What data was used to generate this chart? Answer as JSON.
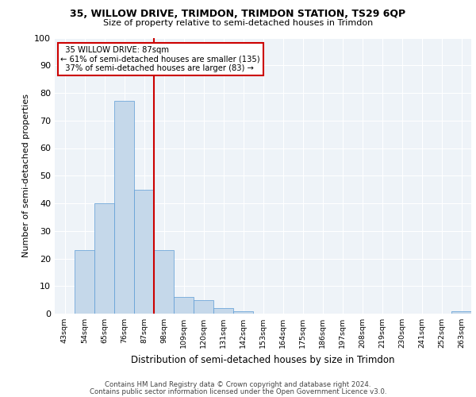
{
  "title": "35, WILLOW DRIVE, TRIMDON, TRIMDON STATION, TS29 6QP",
  "subtitle": "Size of property relative to semi-detached houses in Trimdon",
  "xlabel": "Distribution of semi-detached houses by size in Trimdon",
  "ylabel": "Number of semi-detached properties",
  "bins": [
    43,
    54,
    65,
    76,
    87,
    98,
    109,
    120,
    131,
    142,
    153,
    164,
    175,
    186,
    197,
    208,
    219,
    230,
    241,
    252,
    263
  ],
  "counts": [
    0,
    23,
    40,
    77,
    45,
    23,
    6,
    5,
    2,
    1,
    0,
    0,
    0,
    0,
    0,
    0,
    0,
    0,
    0,
    0,
    1
  ],
  "property_size": 87,
  "property_label": "35 WILLOW DRIVE: 87sqm",
  "pct_smaller": 61,
  "n_smaller": 135,
  "pct_larger": 37,
  "n_larger": 83,
  "bar_color": "#c5d8ea",
  "bar_edge_color": "#5b9bd5",
  "vline_color": "#cc0000",
  "annotation_box_edge": "#cc0000",
  "background_color": "#eef3f8",
  "grid_color": "#ffffff",
  "ylim": [
    0,
    100
  ],
  "tick_labels": [
    "43sqm",
    "54sqm",
    "65sqm",
    "76sqm",
    "87sqm",
    "98sqm",
    "109sqm",
    "120sqm",
    "131sqm",
    "142sqm",
    "153sqm",
    "164sqm",
    "175sqm",
    "186sqm",
    "197sqm",
    "208sqm",
    "219sqm",
    "230sqm",
    "241sqm",
    "252sqm",
    "263sqm"
  ],
  "footer1": "Contains HM Land Registry data © Crown copyright and database right 2024.",
  "footer2": "Contains public sector information licensed under the Open Government Licence v3.0."
}
